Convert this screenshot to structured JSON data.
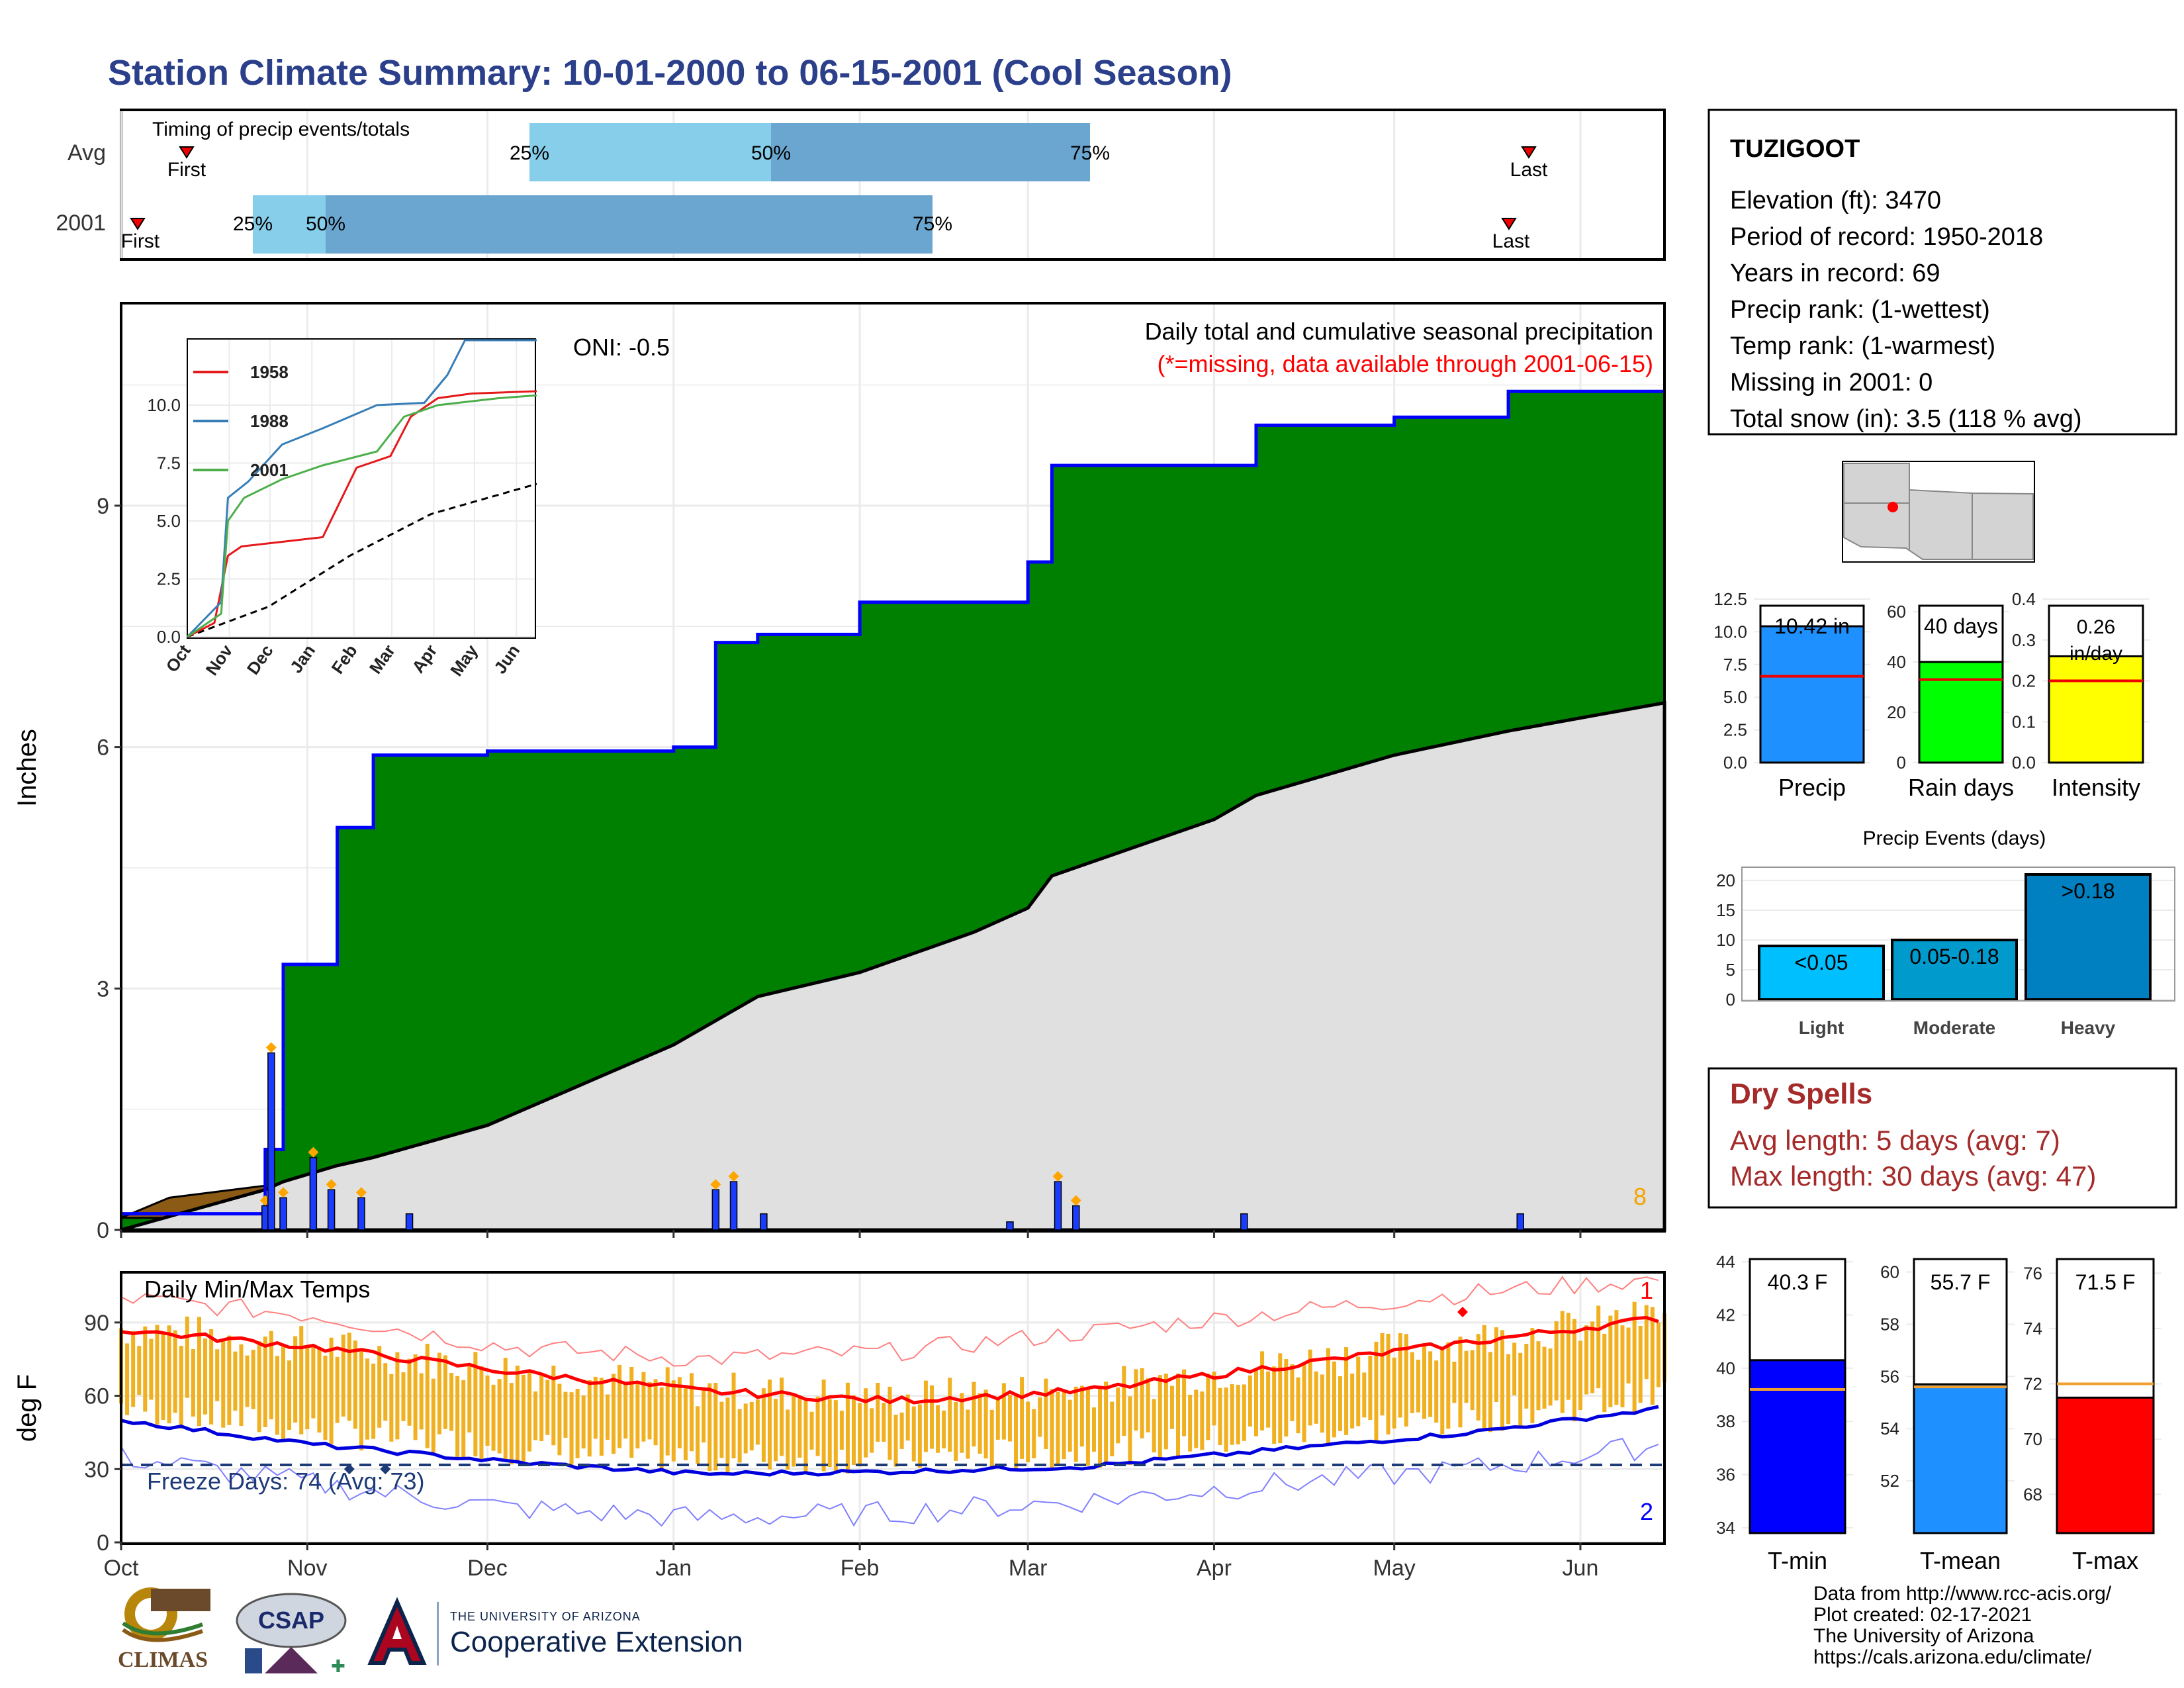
{
  "header": {
    "title": "Station Climate Summary: 10-01-2000 to 06-15-2001 (Cool Season)"
  },
  "timing_panel": {
    "title": "Timing of precip events/totals",
    "rows": [
      {
        "label": "Avg",
        "first_label": "First",
        "last_label": "Last",
        "p25": "25%",
        "p50": "50%",
        "p75": "75%"
      },
      {
        "label": "2001",
        "first_label": "First",
        "last_label": "Last",
        "p25": "25%",
        "p50": "50%",
        "p75": "75%"
      }
    ]
  },
  "precip_panel": {
    "ylabel": "Inches",
    "oni": "ONI: -0.5",
    "legend_line1": "Daily total and cumulative seasonal precipitation",
    "legend_line2": "(*=missing, data available through 2001-06-15)",
    "corner_count": "8",
    "y_ticks": [
      "0",
      "3",
      "6",
      "9"
    ],
    "colors": {
      "cumulative_fill": "#008000",
      "avg_fill": "#e0e0e0",
      "deficit_fill": "#8b5a14",
      "outline": "#0000ff",
      "daily_bar": "#1a3cff"
    }
  },
  "inset": {
    "y_ticks": [
      "0.0",
      "2.5",
      "5.0",
      "7.5",
      "10.0"
    ],
    "x_ticks": [
      "Oct",
      "Nov",
      "Dec",
      "Jan",
      "Feb",
      "Mar",
      "Apr",
      "May",
      "Jun"
    ],
    "legend": [
      "1958",
      "1988",
      "2001"
    ],
    "colors": {
      "1958": "#e41a1c",
      "1988": "#377eb8",
      "2001": "#4daf4a"
    }
  },
  "temp_panel": {
    "ylabel": "deg F",
    "title": "Daily Min/Max Temps",
    "freeze_text": "Freeze Days: 74 (Avg: 73)",
    "record_high_count": "1",
    "record_low_count": "2",
    "y_ticks": [
      "0",
      "30",
      "60",
      "90"
    ],
    "x_ticks": [
      "Oct",
      "Nov",
      "Dec",
      "Jan",
      "Feb",
      "Mar",
      "Apr",
      "May",
      "Jun"
    ]
  },
  "station": {
    "name": "TUZIGOOT",
    "lines": [
      "Elevation (ft): 3470",
      "Period of record: 1950-2018",
      "Years in record: 69",
      "Precip rank:  (1-wettest)",
      "Temp rank:  (1-warmest)",
      "Missing in 2001: 0",
      "Total snow (in): 3.5 (118 % avg)"
    ]
  },
  "mini_bars": [
    {
      "name": "Precip",
      "label": "10.42 in",
      "ticks": [
        "0.0",
        "2.5",
        "5.0",
        "7.5",
        "10.0",
        "12.5"
      ],
      "color": "#1e90ff"
    },
    {
      "name": "Rain days",
      "label": "40 days",
      "ticks": [
        "0",
        "20",
        "40",
        "60"
      ],
      "color": "#00ff00"
    },
    {
      "name": "Intensity",
      "label": "0.26 in/day",
      "ticks": [
        "0.0",
        "0.1",
        "0.2",
        "0.3",
        "0.4"
      ],
      "color": "#ffff00"
    }
  ],
  "events": {
    "title": "Precip Events (days)",
    "categories": [
      "Light",
      "Moderate",
      "Heavy"
    ],
    "labels": [
      "<0.05",
      "0.05-0.18",
      ">0.18"
    ],
    "y_ticks": [
      "0",
      "5",
      "10",
      "15",
      "20"
    ]
  },
  "dry_spells": {
    "title": "Dry Spells",
    "avg_line": "Avg length: 5 days (avg: 7)",
    "max_line": "Max length: 30 days (avg: 47)"
  },
  "temp_bars": [
    {
      "name": "T-min",
      "label": "40.3 F",
      "ticks": [
        "34",
        "36",
        "38",
        "40",
        "42",
        "44"
      ],
      "color": "#0000ff"
    },
    {
      "name": "T-mean",
      "label": "55.7 F",
      "ticks": [
        "52",
        "54",
        "56",
        "58",
        "60"
      ],
      "color": "#1e90ff"
    },
    {
      "name": "T-max",
      "label": "71.5 F",
      "ticks": [
        "68",
        "70",
        "72",
        "74",
        "76"
      ],
      "color": "#ff0000"
    }
  ],
  "footer": {
    "lines": [
      "Data from http://www.rcc-acis.org/",
      "Plot created: 02-17-2021",
      "The University of Arizona",
      "https://cals.arizona.edu/climate/"
    ],
    "climas": "CLIMAS",
    "csap": "CSAP",
    "ua_small": "THE UNIVERSITY OF ARIZONA",
    "ua_big": "Cooperative Extension"
  },
  "chart_data": [
    {
      "type": "area",
      "title": "Daily total and cumulative seasonal precipitation",
      "ylabel": "Inches",
      "ylim": [
        0,
        11.5
      ],
      "x": [
        "2000-10-01",
        "2000-10-25",
        "2000-10-28",
        "2000-11-06",
        "2000-11-12",
        "2000-12-01",
        "2001-01-01",
        "2001-01-08",
        "2001-01-15",
        "2001-02-01",
        "2001-02-20",
        "2001-03-01",
        "2001-03-05",
        "2001-04-01",
        "2001-04-08",
        "2001-05-01",
        "2001-05-20",
        "2001-06-15"
      ],
      "series": [
        {
          "name": "2001",
          "values": [
            0.2,
            1.0,
            3.3,
            5.0,
            5.9,
            5.95,
            6.0,
            7.3,
            7.4,
            7.8,
            7.8,
            8.3,
            9.5,
            9.5,
            10.0,
            10.1,
            10.42,
            10.42
          ]
        },
        {
          "name": "Avg",
          "values": [
            0.0,
            0.5,
            0.6,
            0.8,
            0.9,
            1.3,
            2.3,
            2.6,
            2.9,
            3.2,
            3.7,
            4.0,
            4.4,
            5.1,
            5.4,
            5.9,
            6.2,
            6.55
          ]
        }
      ],
      "daily": [
        {
          "date": "2000-10-25",
          "value": 0.3
        },
        {
          "date": "2000-10-26",
          "value": 2.2
        },
        {
          "date": "2000-10-28",
          "value": 0.4
        },
        {
          "date": "2000-11-02",
          "value": 0.9
        },
        {
          "date": "2000-11-05",
          "value": 0.5
        },
        {
          "date": "2000-11-10",
          "value": 0.4
        },
        {
          "date": "2000-11-18",
          "value": 0.2
        },
        {
          "date": "2001-01-08",
          "value": 0.5
        },
        {
          "date": "2001-01-11",
          "value": 0.6
        },
        {
          "date": "2001-01-16",
          "value": 0.2
        },
        {
          "date": "2001-02-26",
          "value": 0.1
        },
        {
          "date": "2001-03-06",
          "value": 0.6
        },
        {
          "date": "2001-03-09",
          "value": 0.3
        },
        {
          "date": "2001-04-06",
          "value": 0.2
        },
        {
          "date": "2001-05-22",
          "value": 0.2
        }
      ]
    },
    {
      "type": "line",
      "title": "Daily Min/Max Temps",
      "ylabel": "deg F",
      "ylim": [
        0,
        110
      ],
      "x": [
        "Oct",
        "Nov",
        "Dec",
        "Jan",
        "Feb",
        "Mar",
        "Apr",
        "May",
        "Jun"
      ],
      "series": [
        {
          "name": "Avg max",
          "values": [
            87,
            80,
            70,
            62,
            58,
            62,
            72,
            82,
            92
          ]
        },
        {
          "name": "Avg min",
          "values": [
            50,
            40,
            33,
            28,
            29,
            31,
            38,
            45,
            55
          ]
        },
        {
          "name": "Record high",
          "values": [
            100,
            93,
            80,
            75,
            78,
            86,
            94,
            102,
            108
          ]
        },
        {
          "name": "Record low",
          "values": [
            35,
            24,
            14,
            10,
            12,
            17,
            24,
            30,
            40
          ]
        }
      ]
    },
    {
      "type": "bar",
      "title": "Precip Events (days)",
      "categories": [
        "Light",
        "Moderate",
        "Heavy"
      ],
      "values": [
        9,
        10,
        21
      ],
      "ylim": [
        0,
        22
      ]
    }
  ]
}
